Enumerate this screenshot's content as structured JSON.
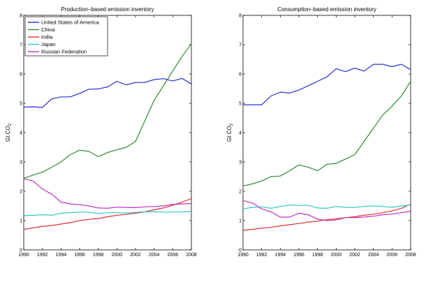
{
  "chart_data": [
    {
      "type": "line",
      "title": "Production–based emission inventory",
      "ylabel": "Gt CO",
      "ylabel_subscript": "2",
      "xlim": [
        1990,
        2008
      ],
      "ylim": [
        0,
        8
      ],
      "xticks": [
        "1990",
        "1992",
        "1994",
        "1996",
        "1998",
        "2000",
        "2002",
        "2004",
        "2006",
        "2008"
      ],
      "yticks": [
        "0",
        "1",
        "2",
        "3",
        "4",
        "5",
        "6",
        "7",
        "8"
      ],
      "legend_position": "top-left",
      "x": [
        1990,
        1991,
        1992,
        1993,
        1994,
        1995,
        1996,
        1997,
        1998,
        1999,
        2000,
        2001,
        2002,
        2003,
        2004,
        2005,
        2006,
        2007,
        2008
      ],
      "series": [
        {
          "name": "United States of America",
          "color": "#2b2bd0",
          "values": [
            4.87,
            4.88,
            4.86,
            5.15,
            5.22,
            5.22,
            5.34,
            5.48,
            5.49,
            5.56,
            5.75,
            5.63,
            5.71,
            5.71,
            5.81,
            5.84,
            5.76,
            5.85,
            5.66
          ]
        },
        {
          "name": "China",
          "color": "#2e8b2e",
          "values": [
            2.44,
            2.55,
            2.65,
            2.82,
            3.0,
            3.25,
            3.4,
            3.36,
            3.18,
            3.32,
            3.42,
            3.5,
            3.7,
            4.4,
            5.1,
            5.6,
            6.1,
            6.6,
            7.03
          ]
        },
        {
          "name": "India",
          "color": "#e03030",
          "values": [
            0.7,
            0.75,
            0.8,
            0.83,
            0.88,
            0.93,
            1.0,
            1.04,
            1.07,
            1.13,
            1.18,
            1.21,
            1.25,
            1.3,
            1.37,
            1.43,
            1.52,
            1.63,
            1.75
          ]
        },
        {
          "name": "Japan",
          "color": "#30c8c8",
          "values": [
            1.17,
            1.18,
            1.2,
            1.18,
            1.25,
            1.27,
            1.29,
            1.28,
            1.24,
            1.27,
            1.27,
            1.26,
            1.28,
            1.3,
            1.3,
            1.29,
            1.29,
            1.3,
            1.3
          ]
        },
        {
          "name": "Russian Federation",
          "color": "#c030c0",
          "values": [
            2.43,
            2.35,
            2.08,
            1.9,
            1.63,
            1.57,
            1.54,
            1.5,
            1.43,
            1.42,
            1.46,
            1.45,
            1.44,
            1.47,
            1.48,
            1.5,
            1.55,
            1.57,
            1.58
          ]
        }
      ]
    },
    {
      "type": "line",
      "title": "Consumption–based emission inventory",
      "ylabel": "Gt CO",
      "ylabel_subscript": "2",
      "xlim": [
        1990,
        2008
      ],
      "ylim": [
        0,
        8
      ],
      "xticks": [
        "1990",
        "1992",
        "1994",
        "1996",
        "1998",
        "2000",
        "2002",
        "2004",
        "2006",
        "2008"
      ],
      "yticks": [
        "0",
        "1",
        "2",
        "3",
        "4",
        "5",
        "6",
        "7",
        "8"
      ],
      "x": [
        1990,
        1991,
        1992,
        1993,
        1994,
        1995,
        1996,
        1997,
        1998,
        1999,
        2000,
        2001,
        2002,
        2003,
        2004,
        2005,
        2006,
        2007,
        2008
      ],
      "series": [
        {
          "name": "United States of America",
          "color": "#2b2bd0",
          "values": [
            4.95,
            4.95,
            4.95,
            5.25,
            5.38,
            5.35,
            5.45,
            5.6,
            5.75,
            5.9,
            6.18,
            6.08,
            6.2,
            6.1,
            6.33,
            6.33,
            6.25,
            6.33,
            6.15
          ]
        },
        {
          "name": "China",
          "color": "#2e8b2e",
          "values": [
            2.18,
            2.25,
            2.35,
            2.5,
            2.52,
            2.7,
            2.9,
            2.82,
            2.7,
            2.92,
            2.95,
            3.1,
            3.25,
            3.7,
            4.15,
            4.6,
            4.9,
            5.25,
            5.75
          ]
        },
        {
          "name": "India",
          "color": "#e03030",
          "values": [
            0.67,
            0.7,
            0.74,
            0.77,
            0.82,
            0.86,
            0.9,
            0.95,
            0.98,
            1.03,
            1.06,
            1.1,
            1.13,
            1.18,
            1.22,
            1.27,
            1.33,
            1.42,
            1.56
          ]
        },
        {
          "name": "Japan",
          "color": "#30c8c8",
          "values": [
            1.4,
            1.45,
            1.47,
            1.42,
            1.48,
            1.53,
            1.52,
            1.52,
            1.43,
            1.42,
            1.48,
            1.45,
            1.45,
            1.48,
            1.5,
            1.48,
            1.45,
            1.5,
            1.53
          ]
        },
        {
          "name": "Russian Federation",
          "color": "#c030c0",
          "values": [
            1.68,
            1.6,
            1.4,
            1.3,
            1.12,
            1.12,
            1.25,
            1.2,
            1.05,
            1.0,
            1.02,
            1.1,
            1.1,
            1.12,
            1.15,
            1.2,
            1.22,
            1.27,
            1.32
          ]
        }
      ]
    }
  ]
}
